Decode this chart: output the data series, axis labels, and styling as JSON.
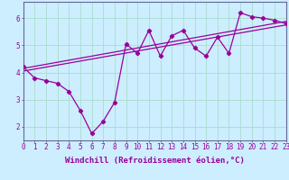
{
  "title": "",
  "xlabel": "Windchill (Refroidissement éolien,°C)",
  "ylabel": "",
  "background_color": "#cceeff",
  "line_color": "#990099",
  "xlim": [
    0,
    23
  ],
  "ylim": [
    1.5,
    6.6
  ],
  "yticks": [
    2,
    3,
    4,
    5,
    6
  ],
  "xticks": [
    0,
    1,
    2,
    3,
    4,
    5,
    6,
    7,
    8,
    9,
    10,
    11,
    12,
    13,
    14,
    15,
    16,
    17,
    18,
    19,
    20,
    21,
    22,
    23
  ],
  "series1_x": [
    0,
    1,
    2,
    3,
    4,
    5,
    6,
    7,
    8,
    9,
    10,
    11,
    12,
    13,
    14,
    15,
    16,
    17,
    18,
    19,
    20,
    21,
    22,
    23
  ],
  "series1_y": [
    4.2,
    3.8,
    3.7,
    3.6,
    3.3,
    2.6,
    1.75,
    2.2,
    2.9,
    5.05,
    4.7,
    5.55,
    4.6,
    5.35,
    5.55,
    4.9,
    4.6,
    5.3,
    4.7,
    6.2,
    6.05,
    6.0,
    5.92,
    5.8
  ],
  "trend1_x": [
    0,
    23
  ],
  "trend1_y": [
    4.05,
    5.75
  ],
  "trend2_x": [
    0,
    23
  ],
  "trend2_y": [
    4.15,
    5.88
  ],
  "grid_color": "#aaddcc",
  "tick_fontsize": 5.5,
  "xlabel_fontsize": 6.5,
  "spine_color": "#666699"
}
